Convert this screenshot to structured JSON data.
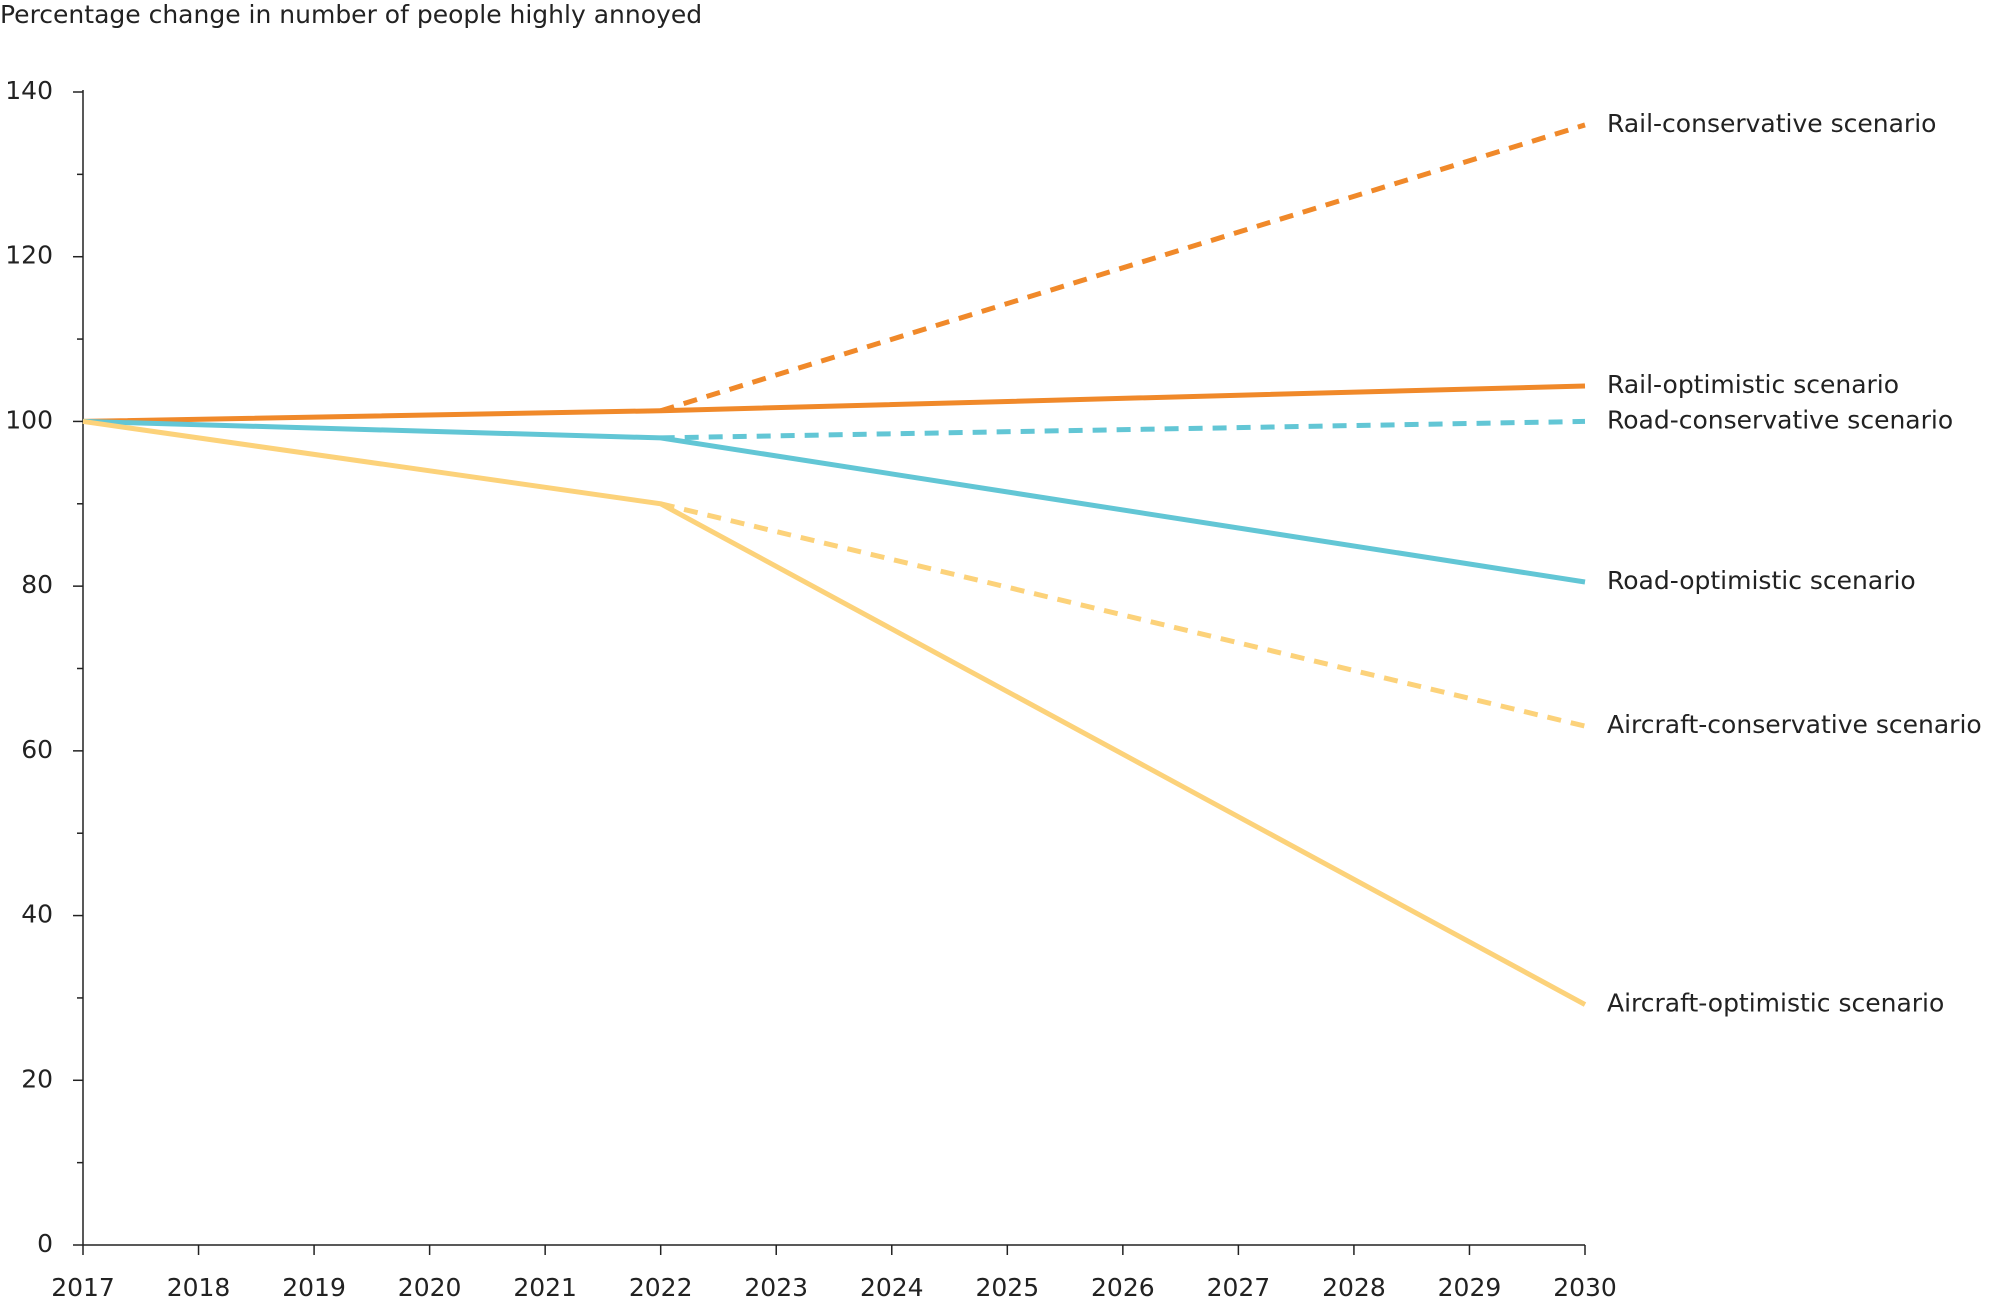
{
  "chart_data": {
    "type": "line",
    "y_axis_label": "Percentage change in number of people highly annoyed",
    "x": [
      2017,
      2022,
      2030
    ],
    "xlim": [
      2017,
      2030
    ],
    "xticks": [
      2017,
      2018,
      2019,
      2020,
      2021,
      2022,
      2023,
      2024,
      2025,
      2026,
      2027,
      2028,
      2029,
      2030
    ],
    "ylim": [
      0,
      140
    ],
    "yticks": [
      0,
      20,
      40,
      60,
      80,
      100,
      120,
      140
    ],
    "yminorticks": [
      10,
      30,
      50,
      70,
      90,
      110,
      130
    ],
    "series": [
      {
        "name": "Rail-conservative scenario",
        "color": "#f0892a",
        "line_style": "dashed",
        "values": [
          null,
          101.3,
          136
        ]
      },
      {
        "name": "Rail-optimistic scenario",
        "color": "#f0892a",
        "line_style": "solid",
        "values": [
          100,
          101.3,
          104.3
        ]
      },
      {
        "name": "Road-conservative scenario",
        "color": "#62c6d5",
        "line_style": "dashed",
        "values": [
          null,
          98,
          100
        ]
      },
      {
        "name": "Road-optimistic scenario",
        "color": "#62c6d5",
        "line_style": "solid",
        "values": [
          100,
          98,
          80.5
        ]
      },
      {
        "name": "Aircraft-conservative scenario",
        "color": "#fcd27a",
        "line_style": "dashed",
        "values": [
          null,
          90,
          63
        ]
      },
      {
        "name": "Aircraft-optimistic scenario",
        "color": "#fcd27a",
        "line_style": "solid",
        "values": [
          100,
          90,
          29.2
        ]
      }
    ]
  }
}
